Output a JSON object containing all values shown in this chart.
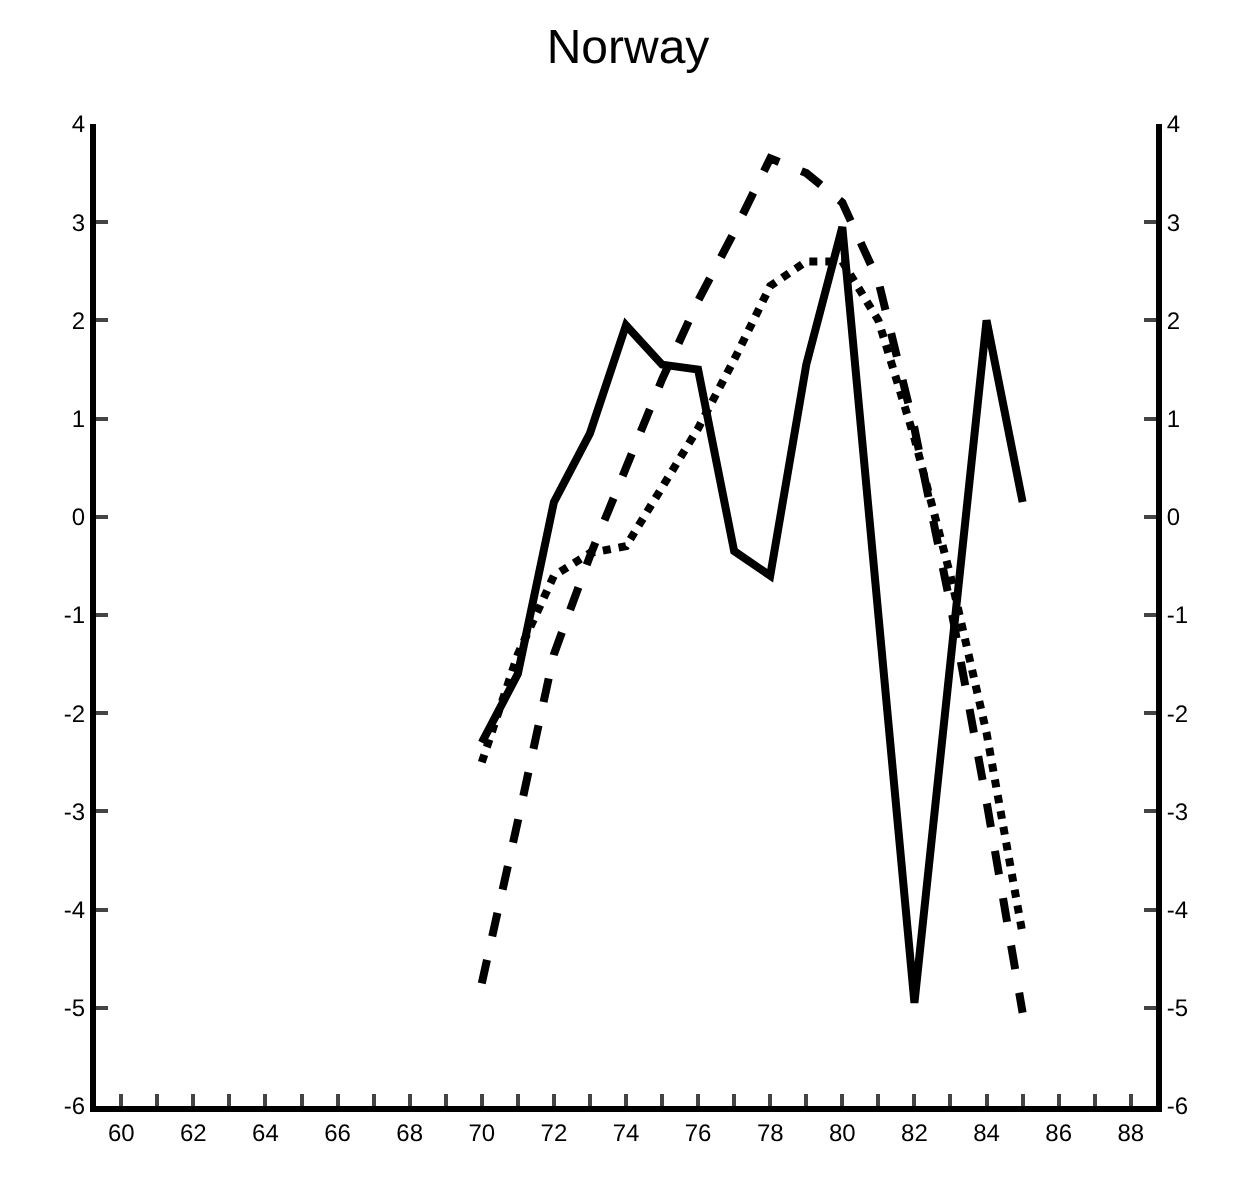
{
  "chart_data": {
    "type": "line",
    "title": "Norway",
    "xlim": [
      59.3,
      88.7
    ],
    "xticks": [
      60,
      {
        "value": 61,
        "label": null
      },
      62,
      {
        "value": 63,
        "label": null
      },
      64,
      {
        "value": 65,
        "label": null
      },
      66,
      {
        "value": 67,
        "label": null
      },
      68,
      {
        "value": 69,
        "label": null
      },
      70,
      {
        "value": 71,
        "label": null
      },
      72,
      {
        "value": 73,
        "label": null
      },
      74,
      {
        "value": 75,
        "label": null
      },
      76,
      {
        "value": 77,
        "label": null
      },
      78,
      {
        "value": 79,
        "label": null
      },
      80,
      {
        "value": 81,
        "label": null
      },
      82,
      {
        "value": 83,
        "label": null
      },
      84,
      {
        "value": 85,
        "label": null
      },
      86,
      {
        "value": 87,
        "label": null
      },
      88
    ],
    "ylim": [
      -6,
      4
    ],
    "yticks": [
      -6,
      -5,
      -4,
      -3,
      -2,
      -1,
      0,
      1,
      2,
      3,
      4
    ],
    "y2lim": [
      -6,
      4
    ],
    "y2ticks": [
      -6,
      -5,
      -4,
      -3,
      -2,
      -1,
      0,
      1,
      2,
      3,
      4
    ],
    "marker": "none",
    "series": [
      {
        "color": "#000000",
        "line_style": "solid",
        "x": [
          70,
          71,
          72,
          73,
          74,
          75,
          76,
          77,
          78,
          79,
          80,
          82,
          84,
          85
        ],
        "values": [
          -2.3,
          -1.6,
          0.15,
          0.85,
          1.95,
          1.55,
          1.5,
          -0.35,
          -0.6,
          1.55,
          2.95,
          -4.95,
          2.0,
          0.15
        ]
      },
      {
        "color": "#000000",
        "line_style": "dashed",
        "x": [
          70,
          71,
          72,
          73,
          74,
          75,
          76,
          77,
          78,
          79,
          80,
          81,
          82,
          83,
          84,
          85
        ],
        "values": [
          -4.75,
          -3.1,
          -1.4,
          -0.4,
          0.5,
          1.4,
          2.2,
          2.9,
          3.65,
          3.5,
          3.2,
          2.4,
          0.9,
          -0.9,
          -2.9,
          -5.05
        ]
      },
      {
        "color": "#000000",
        "line_style": "dotted",
        "x": [
          70,
          71,
          72,
          73,
          74,
          75,
          76,
          77,
          78,
          79,
          80,
          81,
          82,
          83,
          84,
          85
        ],
        "values": [
          -2.5,
          -1.4,
          -0.6,
          -0.37,
          -0.3,
          0.3,
          0.9,
          1.6,
          2.35,
          2.6,
          2.6,
          2.0,
          0.8,
          -0.6,
          -2.2,
          -4.25
        ]
      }
    ]
  }
}
